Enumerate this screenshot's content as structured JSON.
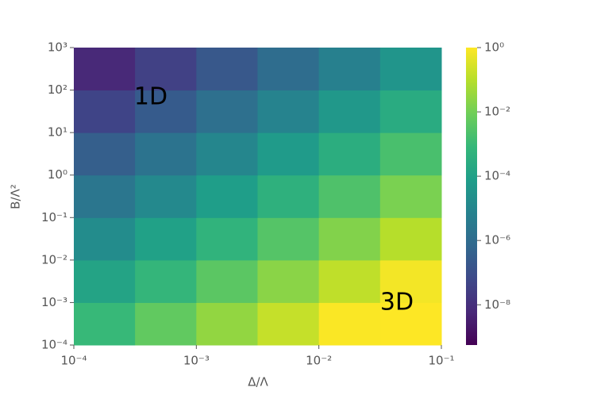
{
  "chart_data": {
    "type": "heatmap",
    "colormap": "viridis",
    "log_x": true,
    "log_y": true,
    "log_color": true,
    "xlabel": "Δ/Λ",
    "ylabel": "B/Λ²",
    "annotations": [
      "1D",
      "3D"
    ],
    "xbins": [
      0.0001,
      0.000316,
      0.001,
      0.00316,
      0.01,
      0.0316,
      0.1
    ],
    "ybins": [
      0.0001,
      0.001,
      0.01,
      0.1,
      1,
      10,
      100,
      1000
    ],
    "z": [
      [
        0.00091,
        0.0051,
        0.029,
        0.16,
        0.91,
        1
      ],
      [
        0.00013,
        0.00071,
        0.004,
        0.022,
        0.13,
        0.71
      ],
      [
        1.7e-05,
        9.8e-05,
        0.00055,
        0.0031,
        0.017,
        0.098
      ],
      [
        2.4e-06,
        1.3e-05,
        7.6e-05,
        0.00043,
        0.0024,
        0.013
      ],
      [
        3.3e-07,
        1.9e-06,
        1e-05,
        5.9e-05,
        0.00033,
        0.0019
      ],
      [
        4.6e-08,
        2.6e-07,
        1.4e-06,
        8.1e-06,
        4.6e-05,
        0.00026
      ],
      [
        6.3e-09,
        3.5e-08,
        2e-07,
        1.1e-06,
        6.3e-06,
        3.5e-05
      ]
    ],
    "xlim": [
      0.0001,
      0.1
    ],
    "ylim": [
      0.0001,
      1000
    ],
    "clim": [
      5.6e-10,
      1
    ],
    "xticks": [
      {
        "value": 0.0001,
        "label": "10⁻⁴"
      },
      {
        "value": 0.001,
        "label": "10⁻³"
      },
      {
        "value": 0.01,
        "label": "10⁻²"
      },
      {
        "value": 0.1,
        "label": "10⁻¹"
      }
    ],
    "yticks": [
      {
        "value": 0.0001,
        "label": "10⁻⁴"
      },
      {
        "value": 0.001,
        "label": "10⁻³"
      },
      {
        "value": 0.01,
        "label": "10⁻²"
      },
      {
        "value": 0.1,
        "label": "10⁻¹"
      },
      {
        "value": 1,
        "label": "10⁰"
      },
      {
        "value": 10,
        "label": "10¹"
      },
      {
        "value": 100,
        "label": "10²"
      },
      {
        "value": 1000,
        "label": "10³"
      }
    ],
    "cticks": [
      {
        "value": 1,
        "label": "10⁰"
      },
      {
        "value": 0.01,
        "label": "10⁻²"
      },
      {
        "value": 0.0001,
        "label": "10⁻⁴"
      },
      {
        "value": 1e-06,
        "label": "10⁻⁶"
      },
      {
        "value": 1e-08,
        "label": "10⁻⁸"
      }
    ]
  }
}
